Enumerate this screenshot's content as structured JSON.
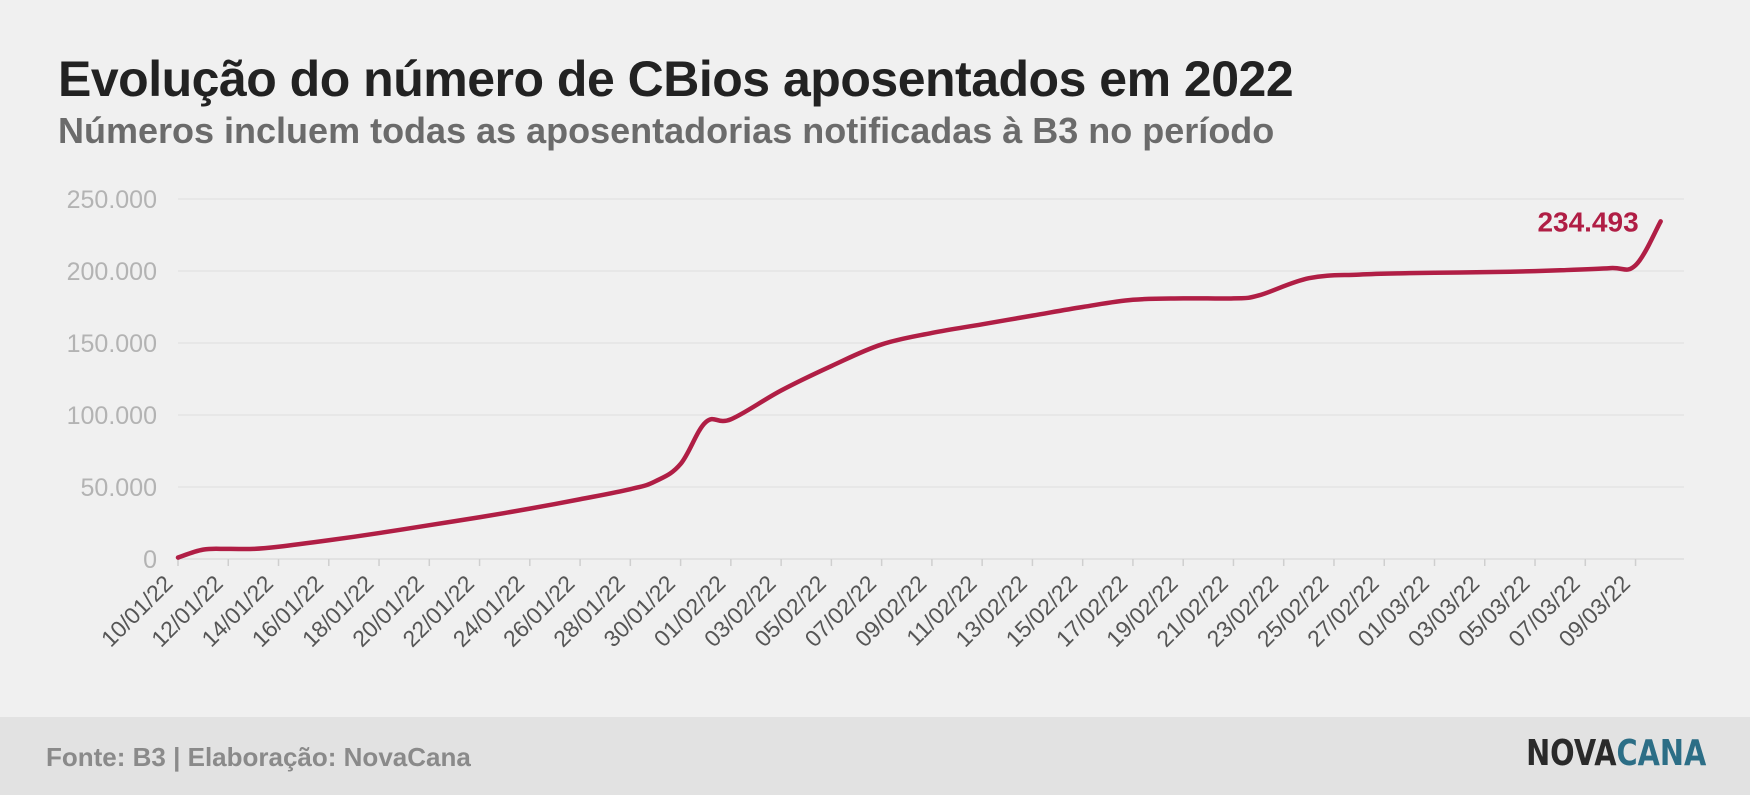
{
  "header": {
    "title": "Evolução do número de CBios aposentados em 2022",
    "subtitle": "Números incluem todas as aposentadorias notificadas à B3 no período"
  },
  "footer": {
    "source": "Fonte: B3 | Elaboração: NovaCana",
    "logo_part1": "NOVA",
    "logo_part2": "CANA"
  },
  "colors": {
    "line": "#b01e45",
    "grid": "#dedede",
    "tick_text": "#b3b3b3",
    "x_tick_text": "#555555",
    "logo_dark": "#2a2a2a",
    "logo_accent": "#2c6e86"
  },
  "chart_data": {
    "type": "line",
    "x_tick_labels": [
      "10/01/22",
      "12/01/22",
      "14/01/22",
      "16/01/22",
      "18/01/22",
      "20/01/22",
      "22/01/22",
      "24/01/22",
      "26/01/22",
      "28/01/22",
      "30/01/22",
      "01/02/22",
      "03/02/22",
      "05/02/22",
      "07/02/22",
      "09/02/22",
      "11/02/22",
      "13/02/22",
      "15/02/22",
      "17/02/22",
      "19/02/22",
      "21/02/22",
      "23/02/22",
      "25/02/22",
      "27/02/22",
      "01/03/22",
      "03/03/22",
      "05/03/22",
      "07/03/22",
      "09/03/22"
    ],
    "y_ticks": [
      0,
      50000,
      100000,
      150000,
      200000,
      250000
    ],
    "y_tick_labels": [
      "0",
      "50.000",
      "100.000",
      "150.000",
      "200.000",
      "250.000"
    ],
    "ylim": [
      0,
      250000
    ],
    "grid": true,
    "series": [
      {
        "points": [
          [
            "10/01/22",
            1000
          ],
          [
            "11/01/22",
            6500
          ],
          [
            "12/01/22",
            7000
          ],
          [
            "13/01/22",
            7000
          ],
          [
            "14/01/22",
            8500
          ],
          [
            "16/01/22",
            13000
          ],
          [
            "18/01/22",
            18000
          ],
          [
            "20/01/22",
            23500
          ],
          [
            "22/01/22",
            29000
          ],
          [
            "24/01/22",
            35000
          ],
          [
            "26/01/22",
            41500
          ],
          [
            "28/01/22",
            48500
          ],
          [
            "29/01/22",
            54000
          ],
          [
            "30/01/22",
            66000
          ],
          [
            "31/01/22",
            95000
          ],
          [
            "01/02/22",
            97000
          ],
          [
            "03/02/22",
            117000
          ],
          [
            "05/02/22",
            134000
          ],
          [
            "07/02/22",
            149000
          ],
          [
            "09/02/22",
            157000
          ],
          [
            "11/02/22",
            163000
          ],
          [
            "13/02/22",
            169000
          ],
          [
            "15/02/22",
            175000
          ],
          [
            "17/02/22",
            180000
          ],
          [
            "19/02/22",
            181000
          ],
          [
            "21/02/22",
            181000
          ],
          [
            "22/02/22",
            183000
          ],
          [
            "24/02/22",
            195000
          ],
          [
            "26/02/22",
            197500
          ],
          [
            "28/02/22",
            198500
          ],
          [
            "02/03/22",
            199000
          ],
          [
            "04/03/22",
            199500
          ],
          [
            "06/03/22",
            200500
          ],
          [
            "08/03/22",
            202000
          ],
          [
            "09/03/22",
            204000
          ],
          [
            "10/03/22",
            234493
          ]
        ]
      }
    ],
    "annotation": {
      "label": "234.493",
      "value": 234493,
      "date": "10/03/22"
    }
  }
}
